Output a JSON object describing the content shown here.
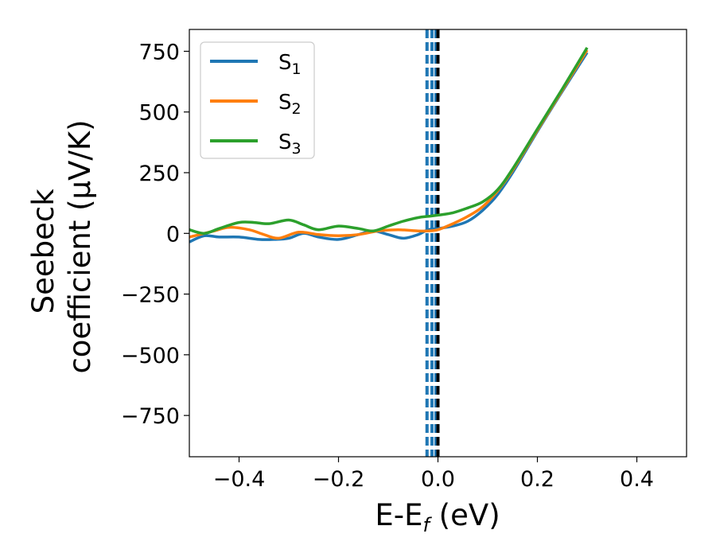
{
  "chart_data": {
    "type": "line",
    "xlabel": "E-E_f (eV)",
    "ylabel_line1": "Seebeck",
    "ylabel_line2": "coefficient  (μV/K)",
    "xlim": [
      -0.5,
      0.5
    ],
    "ylim": [
      -920,
      840
    ],
    "xticks": [
      -0.4,
      -0.2,
      0.0,
      0.2,
      0.4
    ],
    "xtick_labels": [
      "−0.4",
      "−0.2",
      "0.0",
      "0.2",
      "0.4"
    ],
    "yticks": [
      750,
      500,
      250,
      0,
      -250,
      -500,
      -750
    ],
    "ytick_labels": [
      "750",
      "500",
      "250",
      "0",
      "−250",
      "−500",
      "−750"
    ],
    "grid": false,
    "legend_position": "top-left",
    "vertical_lines": [
      {
        "x": -0.022,
        "color": "#1f77b4",
        "style": "dashed"
      },
      {
        "x": -0.012,
        "color": "#1f77b4",
        "style": "dashed"
      },
      {
        "x": -0.004,
        "color": "#1f77b4",
        "style": "dashed"
      },
      {
        "x": 0.0,
        "color": "#000000",
        "style": "dashed"
      }
    ],
    "series": [
      {
        "name": "S1",
        "color": "#1f77b4",
        "x": [
          -0.5,
          -0.47,
          -0.44,
          -0.4,
          -0.36,
          -0.33,
          -0.3,
          -0.27,
          -0.24,
          -0.2,
          -0.16,
          -0.13,
          -0.1,
          -0.07,
          -0.04,
          -0.02,
          0.0,
          0.03,
          0.06,
          0.09,
          0.12,
          0.15,
          0.2,
          0.25,
          0.3
        ],
        "y": [
          -35,
          -10,
          -15,
          -15,
          -25,
          -25,
          -20,
          0,
          -15,
          -25,
          -5,
          10,
          -5,
          -20,
          -5,
          15,
          20,
          30,
          50,
          95,
          160,
          250,
          420,
          585,
          745
        ]
      },
      {
        "name": "S2",
        "color": "#ff7f0e",
        "x": [
          -0.5,
          -0.45,
          -0.42,
          -0.38,
          -0.35,
          -0.32,
          -0.28,
          -0.24,
          -0.2,
          -0.16,
          -0.12,
          -0.08,
          -0.04,
          -0.02,
          0.0,
          0.03,
          0.06,
          0.09,
          0.12,
          0.15,
          0.2,
          0.25,
          0.3
        ],
        "y": [
          -15,
          10,
          25,
          15,
          -5,
          -20,
          5,
          -5,
          -10,
          -5,
          10,
          15,
          10,
          10,
          15,
          40,
          70,
          110,
          175,
          260,
          425,
          590,
          755
        ]
      },
      {
        "name": "S3",
        "color": "#2ca02c",
        "x": [
          -0.5,
          -0.47,
          -0.44,
          -0.4,
          -0.37,
          -0.34,
          -0.3,
          -0.27,
          -0.24,
          -0.2,
          -0.16,
          -0.13,
          -0.1,
          -0.07,
          -0.04,
          -0.02,
          0.0,
          0.03,
          0.06,
          0.09,
          0.12,
          0.15,
          0.2,
          0.25,
          0.3
        ],
        "y": [
          15,
          0,
          20,
          45,
          45,
          40,
          55,
          35,
          15,
          30,
          20,
          10,
          30,
          50,
          65,
          70,
          75,
          85,
          105,
          130,
          180,
          265,
          430,
          595,
          765
        ]
      }
    ]
  }
}
